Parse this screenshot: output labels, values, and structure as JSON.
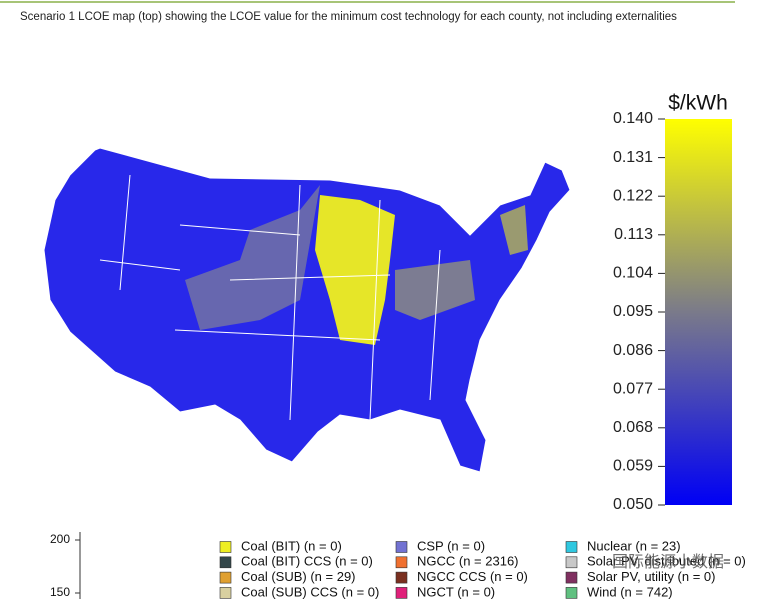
{
  "caption": "Scenario 1 LCOE map (top) showing the LCOE value for the minimum cost technology for each county, not including externalities",
  "colorbar": {
    "title": "$/kWh",
    "ticks": [
      {
        "value": 0.14,
        "label": "0.140"
      },
      {
        "value": 0.131,
        "label": "0.131"
      },
      {
        "value": 0.122,
        "label": "0.122"
      },
      {
        "value": 0.113,
        "label": "0.113"
      },
      {
        "value": 0.104,
        "label": "0.104"
      },
      {
        "value": 0.095,
        "label": "0.095"
      },
      {
        "value": 0.086,
        "label": "0.086"
      },
      {
        "value": 0.077,
        "label": "0.077"
      },
      {
        "value": 0.068,
        "label": "0.068"
      },
      {
        "value": 0.059,
        "label": "0.059"
      },
      {
        "value": 0.05,
        "label": "0.050"
      }
    ],
    "colors": [
      "#0000f5",
      "#7a7a8a",
      "#ffff00"
    ]
  },
  "legend": [
    {
      "name": "Coal (BIT) (n = 0)",
      "color": "#eeee22"
    },
    {
      "name": "Coal (BIT) CCS (n = 0)",
      "color": "#33474a"
    },
    {
      "name": "Coal (SUB) (n = 29)",
      "color": "#e0a030"
    },
    {
      "name": "Coal (SUB) CCS (n = 0)",
      "color": "#d8d0a0"
    },
    {
      "name": "CSP (n = 0)",
      "color": "#7272d2"
    },
    {
      "name": "NGCC (n = 2316)",
      "color": "#f07030"
    },
    {
      "name": "NGCC CCS (n = 0)",
      "color": "#7a3020"
    },
    {
      "name": "NGCT (n = 0)",
      "color": "#e0207a"
    },
    {
      "name": "Nuclear (n = 23)",
      "color": "#30c8e0"
    },
    {
      "name": "Solar PV, distributed (n = 0)",
      "color": "#c8c8c8"
    },
    {
      "name": "Solar PV, utility (n = 0)",
      "color": "#803060"
    },
    {
      "name": "Wind (n = 742)",
      "color": "#60c080"
    }
  ],
  "inset_chart": {
    "yticks": [
      200,
      150
    ]
  },
  "watermark": "国际能源小数据"
}
